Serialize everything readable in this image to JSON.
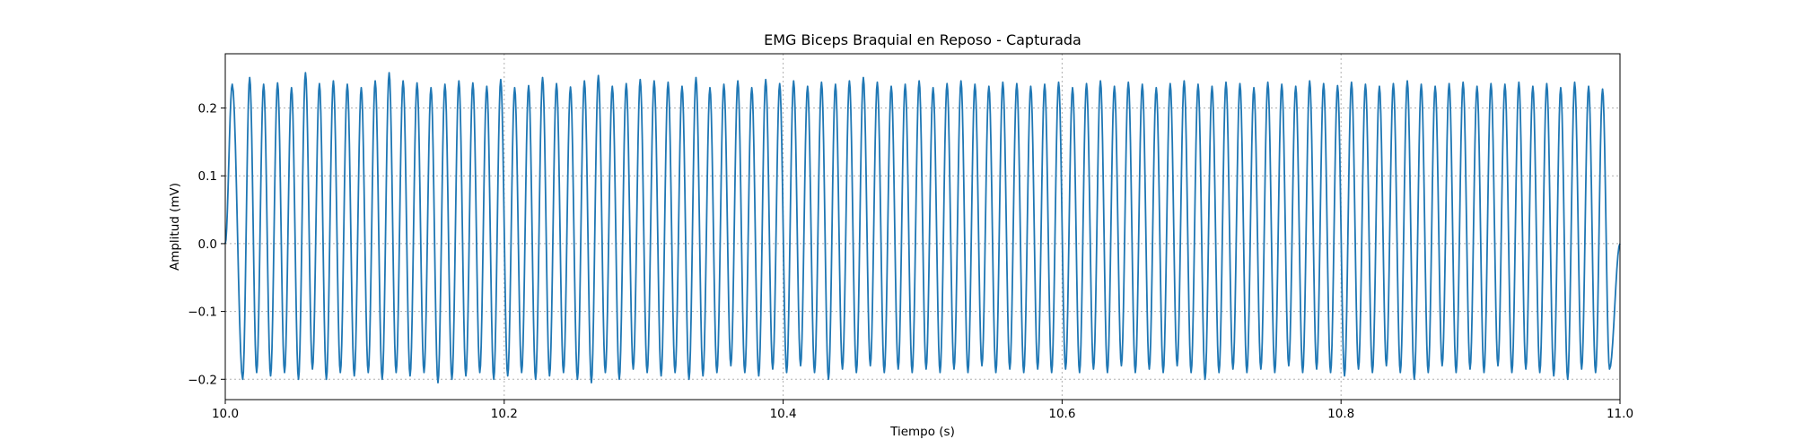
{
  "chart_data": {
    "type": "line",
    "title": "EMG Biceps Braquial en Reposo - Capturada",
    "xlabel": "Tiempo (s)",
    "ylabel": "Amplitud (mV)",
    "xlim": [
      10.0,
      11.0
    ],
    "ylim": [
      -0.23,
      0.28
    ],
    "xticks": [
      10.0,
      10.2,
      10.4,
      10.6,
      10.8,
      11.0
    ],
    "xtick_labels": [
      "10.0",
      "10.2",
      "10.4",
      "10.6",
      "10.8",
      "11.0"
    ],
    "yticks": [
      -0.2,
      -0.1,
      0.0,
      0.1,
      0.2
    ],
    "ytick_labels": [
      "−0.2",
      "−0.1",
      "0.0",
      "0.1",
      "0.2"
    ],
    "grid": true,
    "line_color": "#1f77b4",
    "series": [
      {
        "x": [
          10.0,
          10.005,
          10.0125,
          10.0175,
          10.0225,
          10.0275,
          10.0325,
          10.0375,
          10.0425,
          10.0475,
          10.0525,
          10.0575,
          10.0625,
          10.0675,
          10.0725,
          10.0775,
          10.0825,
          10.0875,
          10.0925,
          10.0975,
          10.1025,
          10.1075,
          10.1125,
          10.1175,
          10.1225,
          10.1275,
          10.1325,
          10.1375,
          10.1425,
          10.1475,
          10.1525,
          10.1575,
          10.1625,
          10.1675,
          10.1725,
          10.1775,
          10.1825,
          10.1875,
          10.1925,
          10.1975,
          10.2025,
          10.2075,
          10.2125,
          10.2175,
          10.2225,
          10.2275,
          10.2325,
          10.2375,
          10.2425,
          10.2475,
          10.2525,
          10.2575,
          10.2625,
          10.2675,
          10.2725,
          10.2775,
          10.2825,
          10.2875,
          10.2925,
          10.2975,
          10.3025,
          10.3075,
          10.3125,
          10.3175,
          10.3225,
          10.3275,
          10.3325,
          10.3375,
          10.3425,
          10.3475,
          10.3525,
          10.3575,
          10.3625,
          10.3675,
          10.3725,
          10.3775,
          10.3825,
          10.3875,
          10.3925,
          10.3975,
          10.4025,
          10.4075,
          10.4125,
          10.4175,
          10.4225,
          10.4275,
          10.4325,
          10.4375,
          10.4425,
          10.4475,
          10.4525,
          10.4575,
          10.4625,
          10.4675,
          10.4725,
          10.4775,
          10.4825,
          10.4875,
          10.4925,
          10.4975,
          10.5025,
          10.5075,
          10.5125,
          10.5175,
          10.5225,
          10.5275,
          10.5325,
          10.5375,
          10.5425,
          10.5475,
          10.5525,
          10.5575,
          10.5625,
          10.5675,
          10.5725,
          10.5775,
          10.5825,
          10.5875,
          10.5925,
          10.5975,
          10.6025,
          10.6075,
          10.6125,
          10.6175,
          10.6225,
          10.6275,
          10.6325,
          10.6375,
          10.6425,
          10.6475,
          10.6525,
          10.6575,
          10.6625,
          10.6675,
          10.6725,
          10.6775,
          10.6825,
          10.6875,
          10.6925,
          10.6975,
          10.7025,
          10.7075,
          10.7125,
          10.7175,
          10.7225,
          10.7275,
          10.7325,
          10.7375,
          10.7425,
          10.7475,
          10.7525,
          10.7575,
          10.7625,
          10.7675,
          10.7725,
          10.7775,
          10.7825,
          10.7875,
          10.7925,
          10.7975,
          10.8025,
          10.8075,
          10.8125,
          10.8175,
          10.8225,
          10.8275,
          10.8325,
          10.8375,
          10.8425,
          10.8475,
          10.8525,
          10.8575,
          10.8625,
          10.8675,
          10.8725,
          10.8775,
          10.8825,
          10.8875,
          10.8925,
          10.8975,
          10.9025,
          10.9075,
          10.9125,
          10.9175,
          10.9225,
          10.9275,
          10.9325,
          10.9375,
          10.9425,
          10.9475,
          10.9525,
          10.9575,
          10.9625,
          10.9675,
          10.9725,
          10.9775,
          10.9825,
          10.9875,
          10.9925,
          11.0
        ],
        "y": [
          0.0,
          0.235,
          -0.2,
          0.245,
          -0.19,
          0.235,
          -0.195,
          0.237,
          -0.19,
          0.23,
          -0.2,
          0.252,
          -0.185,
          0.236,
          -0.2,
          0.24,
          -0.19,
          0.235,
          -0.195,
          0.23,
          -0.19,
          0.24,
          -0.2,
          0.252,
          -0.19,
          0.24,
          -0.195,
          0.237,
          -0.19,
          0.23,
          -0.205,
          0.235,
          -0.2,
          0.24,
          -0.195,
          0.237,
          -0.19,
          0.232,
          -0.2,
          0.242,
          -0.195,
          0.23,
          -0.19,
          0.233,
          -0.2,
          0.245,
          -0.195,
          0.236,
          -0.19,
          0.231,
          -0.2,
          0.24,
          -0.205,
          0.248,
          -0.19,
          0.232,
          -0.2,
          0.236,
          -0.185,
          0.242,
          -0.19,
          0.24,
          -0.195,
          0.238,
          -0.19,
          0.232,
          -0.2,
          0.245,
          -0.195,
          0.23,
          -0.19,
          0.235,
          -0.18,
          0.24,
          -0.19,
          0.23,
          -0.195,
          0.242,
          -0.185,
          0.236,
          -0.19,
          0.24,
          -0.18,
          0.232,
          -0.19,
          0.238,
          -0.2,
          0.235,
          -0.185,
          0.24,
          -0.19,
          0.245,
          -0.18,
          0.238,
          -0.19,
          0.232,
          -0.185,
          0.235,
          -0.19,
          0.24,
          -0.185,
          0.23,
          -0.19,
          0.236,
          -0.185,
          0.24,
          -0.19,
          0.235,
          -0.18,
          0.232,
          -0.19,
          0.238,
          -0.185,
          0.236,
          -0.19,
          0.232,
          -0.185,
          0.235,
          -0.19,
          0.238,
          -0.185,
          0.23,
          -0.19,
          0.236,
          -0.185,
          0.24,
          -0.19,
          0.232,
          -0.18,
          0.238,
          -0.19,
          0.235,
          -0.185,
          0.23,
          -0.19,
          0.236,
          -0.18,
          0.24,
          -0.19,
          0.235,
          -0.2,
          0.232,
          -0.19,
          0.238,
          -0.185,
          0.236,
          -0.19,
          0.23,
          -0.185,
          0.238,
          -0.19,
          0.235,
          -0.18,
          0.232,
          -0.19,
          0.24,
          -0.185,
          0.236,
          -0.19,
          0.233,
          -0.195,
          0.238,
          -0.185,
          0.235,
          -0.19,
          0.232,
          -0.18,
          0.236,
          -0.19,
          0.24,
          -0.2,
          0.235,
          -0.19,
          0.232,
          -0.18,
          0.236,
          -0.19,
          0.238,
          -0.185,
          0.232,
          -0.19,
          0.236,
          -0.18,
          0.235,
          -0.19,
          0.238,
          -0.185,
          0.232,
          -0.19,
          0.236,
          -0.195,
          0.23,
          -0.2,
          0.238,
          -0.185,
          0.232,
          -0.19,
          0.228,
          -0.185,
          0.0
        ]
      }
    ]
  }
}
